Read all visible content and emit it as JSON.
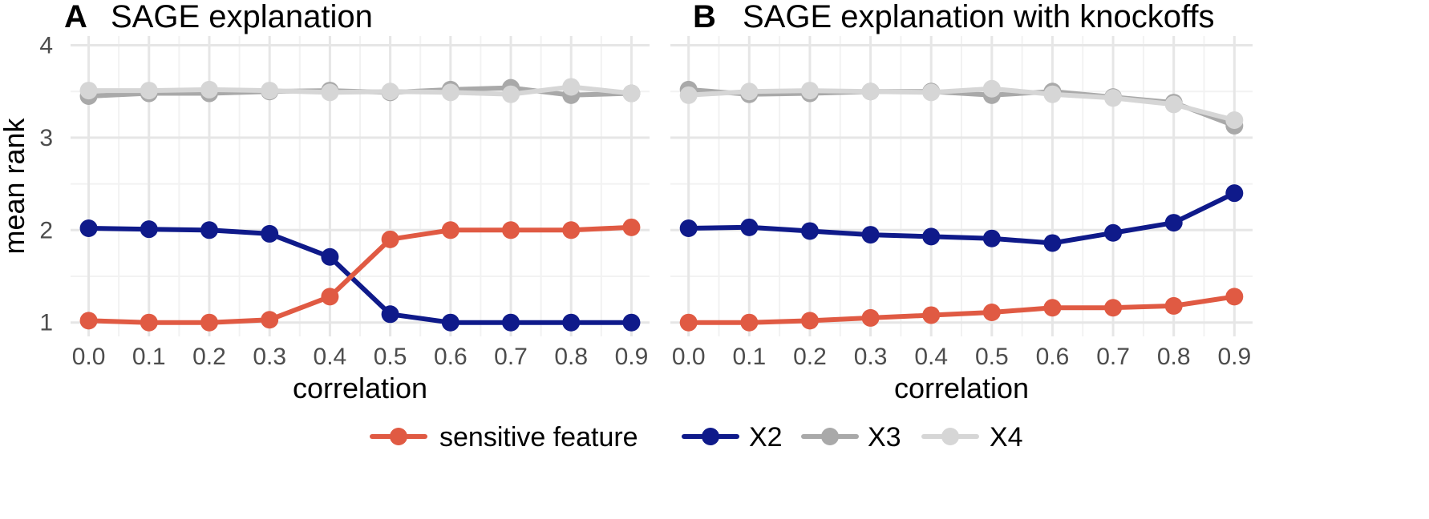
{
  "legend": [
    {
      "label": "sensitive feature",
      "color": "#e05a43"
    },
    {
      "label": "X2",
      "color": "#0f1a8a"
    },
    {
      "label": "X3",
      "color": "#a9a9a9"
    },
    {
      "label": "X4",
      "color": "#d6d6d6"
    }
  ],
  "chart_data": [
    {
      "type": "line",
      "panel": "A",
      "title": "SAGE explanation",
      "xlabel": "correlation",
      "ylabel": "mean rank",
      "x": [
        0.0,
        0.1,
        0.2,
        0.3,
        0.4,
        0.5,
        0.6,
        0.7,
        0.8,
        0.9
      ],
      "x_tick_labels": [
        "0.0",
        "0.1",
        "0.2",
        "0.3",
        "0.4",
        "0.5",
        "0.6",
        "0.7",
        "0.8",
        "0.9"
      ],
      "y_ticks": [
        1,
        2,
        3,
        4
      ],
      "ylim": [
        0.85,
        4.1
      ],
      "xlim": [
        -0.03,
        0.93
      ],
      "grid": true,
      "series": [
        {
          "name": "X3",
          "color": "#a9a9a9",
          "values": [
            3.45,
            3.48,
            3.48,
            3.5,
            3.51,
            3.49,
            3.52,
            3.54,
            3.46,
            3.48
          ]
        },
        {
          "name": "X4",
          "color": "#d6d6d6",
          "values": [
            3.51,
            3.51,
            3.52,
            3.51,
            3.49,
            3.5,
            3.49,
            3.47,
            3.55,
            3.48
          ]
        },
        {
          "name": "X2",
          "color": "#0f1a8a",
          "values": [
            2.02,
            2.01,
            2.0,
            1.96,
            1.71,
            1.09,
            1.0,
            1.0,
            1.0,
            1.0
          ]
        },
        {
          "name": "sensitive feature",
          "color": "#e05a43",
          "values": [
            1.02,
            1.0,
            1.0,
            1.03,
            1.28,
            1.9,
            2.0,
            2.0,
            2.0,
            2.03
          ]
        }
      ]
    },
    {
      "type": "line",
      "panel": "B",
      "title": "SAGE explanation with knockoffs",
      "xlabel": "correlation",
      "ylabel": "",
      "x": [
        0.0,
        0.1,
        0.2,
        0.3,
        0.4,
        0.5,
        0.6,
        0.7,
        0.8,
        0.9
      ],
      "x_tick_labels": [
        "0.0",
        "0.1",
        "0.2",
        "0.3",
        "0.4",
        "0.5",
        "0.6",
        "0.7",
        "0.8",
        "0.9"
      ],
      "y_ticks": [
        1,
        2,
        3,
        4
      ],
      "ylim": [
        0.85,
        4.1
      ],
      "xlim": [
        -0.03,
        0.93
      ],
      "grid": true,
      "series": [
        {
          "name": "X3",
          "color": "#a9a9a9",
          "values": [
            3.52,
            3.47,
            3.48,
            3.5,
            3.5,
            3.46,
            3.5,
            3.44,
            3.38,
            3.13
          ]
        },
        {
          "name": "X4",
          "color": "#d6d6d6",
          "values": [
            3.46,
            3.5,
            3.51,
            3.5,
            3.49,
            3.53,
            3.47,
            3.43,
            3.36,
            3.19
          ]
        },
        {
          "name": "X2",
          "color": "#0f1a8a",
          "values": [
            2.02,
            2.03,
            1.99,
            1.95,
            1.93,
            1.91,
            1.86,
            1.97,
            2.08,
            2.4
          ]
        },
        {
          "name": "sensitive feature",
          "color": "#e05a43",
          "values": [
            1.0,
            1.0,
            1.02,
            1.05,
            1.08,
            1.11,
            1.16,
            1.16,
            1.18,
            1.28
          ]
        }
      ]
    }
  ]
}
